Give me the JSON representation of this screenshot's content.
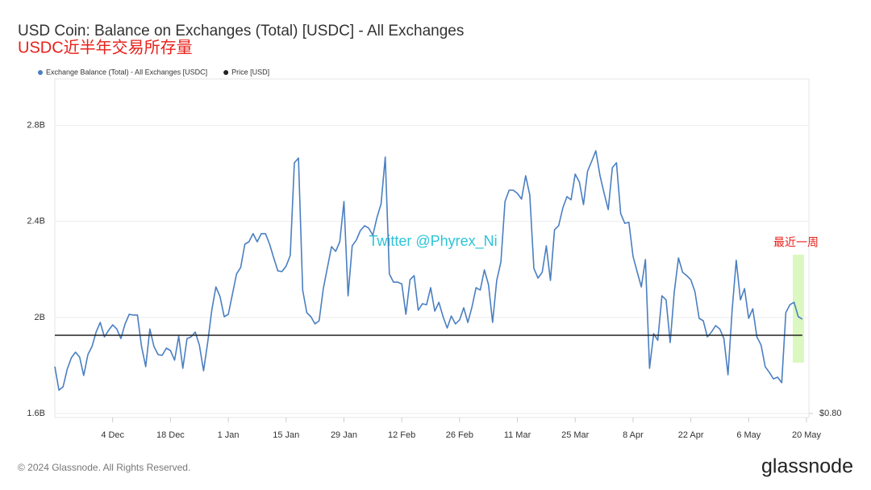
{
  "chart_data": {
    "type": "line",
    "title": "USD Coin: Balance on Exchanges (Total) [USDC] - All Exchanges",
    "subtitle": "USDC近半年交易所存量",
    "annotations": [
      "Twitter @Phyrex_Ni",
      "最近一周"
    ],
    "source": "© 2024 Glassnode. All Rights Reserved.",
    "logo": "glassnode",
    "categories": [
      null,
      null,
      null,
      null,
      null,
      null,
      null,
      null,
      null,
      null,
      null,
      null,
      null,
      null,
      "4 Dec",
      null,
      null,
      null,
      null,
      null,
      null,
      null,
      null,
      null,
      null,
      null,
      null,
      null,
      "18 Dec",
      null,
      null,
      null,
      null,
      null,
      null,
      null,
      null,
      null,
      null,
      null,
      null,
      null,
      "1 Jan",
      null,
      null,
      null,
      null,
      null,
      null,
      null,
      null,
      null,
      null,
      null,
      null,
      null,
      "15 Jan",
      null,
      null,
      null,
      null,
      null,
      null,
      null,
      null,
      null,
      null,
      null,
      null,
      null,
      "29 Jan",
      null,
      null,
      null,
      null,
      null,
      null,
      null,
      null,
      null,
      null,
      null,
      null,
      null,
      "12 Feb",
      null,
      null,
      null,
      null,
      null,
      null,
      null,
      null,
      null,
      null,
      null,
      null,
      null,
      "26 Feb",
      null,
      null,
      null,
      null,
      null,
      null,
      null,
      null,
      null,
      null,
      null,
      null,
      null,
      "11 Mar",
      null,
      null,
      null,
      null,
      null,
      null,
      null,
      null,
      null,
      null,
      null,
      null,
      null,
      "25 Mar",
      null,
      null,
      null,
      null,
      null,
      null,
      null,
      null,
      null,
      null,
      null,
      null,
      null,
      "8 Apr",
      null,
      null,
      null,
      null,
      null,
      null,
      null,
      null,
      null,
      null,
      null,
      null,
      null,
      "22 Apr",
      null,
      null,
      null,
      null,
      null,
      null,
      null,
      null,
      null,
      null,
      null,
      null,
      null,
      "6 May",
      null,
      null,
      null,
      null,
      null,
      null,
      null,
      null,
      null,
      null,
      null,
      null,
      null,
      "20 May"
    ],
    "series": [
      {
        "name": "Exchange Balance (Total) - All Exchanges [USDC]",
        "color": "#4a7fc1",
        "values": [
          1795000000.0,
          1697000000.0,
          1711000000.0,
          1785000000.0,
          1832000000.0,
          1855000000.0,
          1835000000.0,
          1758000000.0,
          1845000000.0,
          1879000000.0,
          1939000000.0,
          1979000000.0,
          1919000000.0,
          1946000000.0,
          1969000000.0,
          1952000000.0,
          1912000000.0,
          1973000000.0,
          2013000000.0,
          2010000000.0,
          2010000000.0,
          1879000000.0,
          1795000000.0,
          1952000000.0,
          1879000000.0,
          1845000000.0,
          1842000000.0,
          1872000000.0,
          1862000000.0,
          1822000000.0,
          1922000000.0,
          1788000000.0,
          1912000000.0,
          1919000000.0,
          1939000000.0,
          1885000000.0,
          1778000000.0,
          1895000000.0,
          2030000000.0,
          2127000000.0,
          2087000000.0,
          2003000000.0,
          2013000000.0,
          2097000000.0,
          2181000000.0,
          2208000000.0,
          2305000000.0,
          2315000000.0,
          2349000000.0,
          2315000000.0,
          2349000000.0,
          2349000000.0,
          2305000000.0,
          2248000000.0,
          2194000000.0,
          2191000000.0,
          2214000000.0,
          2258000000.0,
          2644000000.0,
          2664000000.0,
          2114000000.0,
          2020000000.0,
          2003000000.0,
          1973000000.0,
          1986000000.0,
          2120000000.0,
          2208000000.0,
          2295000000.0,
          2275000000.0,
          2315000000.0,
          2483000000.0,
          2090000000.0,
          2298000000.0,
          2322000000.0,
          2362000000.0,
          2382000000.0,
          2372000000.0,
          2342000000.0,
          2416000000.0,
          2473000000.0,
          2668000000.0,
          2181000000.0,
          2147000000.0,
          2147000000.0,
          2140000000.0,
          2013000000.0,
          2157000000.0,
          2174000000.0,
          2030000000.0,
          2057000000.0,
          2053000000.0,
          2124000000.0,
          2026000000.0,
          2063000000.0,
          2003000000.0,
          1956000000.0,
          2006000000.0,
          1973000000.0,
          1989000000.0,
          2040000000.0,
          1979000000.0,
          2043000000.0,
          2124000000.0,
          2114000000.0,
          2198000000.0,
          2137000000.0,
          1979000000.0,
          2154000000.0,
          2231000000.0,
          2483000000.0,
          2530000000.0,
          2530000000.0,
          2517000000.0,
          2493000000.0,
          2590000000.0,
          2510000000.0,
          2204000000.0,
          2164000000.0,
          2188000000.0,
          2298000000.0,
          2154000000.0,
          2365000000.0,
          2382000000.0,
          2456000000.0,
          2503000000.0,
          2490000000.0,
          2597000000.0,
          2564000000.0,
          2470000000.0,
          2610000000.0,
          2651000000.0,
          2694000000.0,
          2590000000.0,
          2517000000.0,
          2449000000.0,
          2624000000.0,
          2644000000.0,
          2433000000.0,
          2392000000.0,
          2396000000.0,
          2255000000.0,
          2191000000.0,
          2127000000.0,
          2241000000.0,
          1788000000.0,
          1932000000.0,
          1905000000.0,
          2090000000.0,
          2073000000.0,
          1895000000.0,
          2107000000.0,
          2248000000.0,
          2188000000.0,
          2174000000.0,
          2157000000.0,
          2107000000.0,
          1996000000.0,
          1986000000.0,
          1919000000.0,
          1939000000.0,
          1966000000.0,
          1952000000.0,
          1912000000.0,
          1761000000.0,
          2030000000.0,
          2238000000.0,
          2073000000.0,
          2120000000.0,
          1996000000.0,
          2036000000.0,
          1919000000.0,
          1885000000.0,
          1795000000.0,
          1771000000.0,
          1744000000.0,
          1751000000.0,
          1728000000.0,
          2020000000.0,
          2053000000.0,
          2063000000.0,
          2003000000.0,
          1993000000.0,
          null
        ]
      },
      {
        "name": "Price [USD]",
        "color": "#222222",
        "axis": "y2",
        "values": [
          1,
          1,
          1,
          1,
          1,
          1,
          1,
          1,
          1,
          1,
          1,
          1,
          1,
          1,
          1,
          1,
          1,
          1,
          1,
          1,
          1,
          1,
          1,
          1,
          1,
          1,
          1,
          1,
          1,
          1,
          1,
          1,
          1,
          1,
          1,
          1,
          1,
          1,
          1,
          1,
          1,
          1,
          1,
          1,
          1,
          1,
          1,
          1,
          1,
          1,
          1,
          1,
          1,
          1,
          1,
          1,
          1,
          1,
          1,
          1,
          1,
          1,
          1,
          1,
          1,
          1,
          1,
          1,
          1,
          1,
          1,
          1,
          1,
          1,
          1,
          1,
          1,
          1,
          1,
          1,
          1,
          1,
          1,
          1,
          1,
          1,
          1,
          1,
          1,
          1,
          1,
          1,
          1,
          1,
          1,
          1,
          1,
          1,
          1,
          1,
          1,
          1,
          1,
          1,
          1,
          1,
          1,
          1,
          1,
          1,
          1,
          1,
          1,
          1,
          1,
          1,
          1,
          1,
          1,
          1,
          1,
          1,
          1,
          1,
          1,
          1,
          1,
          1,
          1,
          1,
          1,
          1,
          1,
          1,
          1,
          1,
          1,
          1,
          1,
          1,
          1,
          1,
          1,
          1,
          1,
          1,
          1,
          1,
          1,
          1,
          1,
          1,
          1,
          1,
          1,
          1,
          1,
          1,
          1,
          1,
          1,
          1,
          1,
          1,
          1,
          1,
          1,
          1,
          1,
          1,
          1,
          1,
          1,
          1,
          1,
          1,
          1,
          1,
          1,
          1,
          1,
          1,
          null
        ]
      }
    ],
    "ylim": [
      1600000000.0,
      3000000000.0
    ],
    "yticks": [
      {
        "value": 1600000000.0,
        "label": "1.6B"
      },
      {
        "value": 2000000000.0,
        "label": "2B"
      },
      {
        "value": 2400000000.0,
        "label": "2.4B"
      },
      {
        "value": 2800000000.0,
        "label": "2.8B"
      }
    ],
    "y2lim": [
      0.8,
      1.66
    ],
    "y2ticks": [
      {
        "value": 0.8,
        "label": "$0.80"
      }
    ],
    "grid": true
  }
}
